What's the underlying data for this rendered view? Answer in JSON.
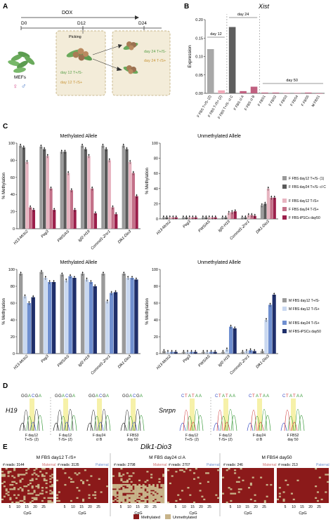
{
  "panel_labels": {
    "a": "A",
    "b": "B",
    "c": "C",
    "d": "D",
    "e": "E"
  },
  "panel_a": {
    "dox": "DOX",
    "d0": "D0",
    "d12": "D12",
    "d24": "D24",
    "picking": "Picking",
    "mefs": "MEFs",
    "day12_a": "day 12 T+/S-",
    "day12_b": "day 12 T-/S+",
    "day24_a": "day 24 T+/S-",
    "day24_b": "day 24 T-/S+",
    "sym_female": "♀",
    "sym_male": "♂"
  },
  "panel_b": {
    "title": "Xist",
    "ylabel": "Expression",
    "group_day12": "day 12",
    "group_day24": "day 24",
    "group_day50": "day 50",
    "yticks": [
      "0.00",
      "0.05",
      "0.10",
      "0.15",
      "0.20"
    ],
    "categories": [
      "F FBS T+/S- (2)",
      "F FBS T-/S+ (2)",
      "F FBS T+/S- cl C",
      "F FBS cl A",
      "F FBS cl B",
      "F FBS1",
      "F FBS2",
      "F FBS3",
      "F FBS4",
      "F FBS5",
      "M FBS1"
    ],
    "values": [
      0.12,
      0.008,
      0.18,
      0.006,
      0.018,
      0.002,
      0.002,
      0.001,
      0.001,
      0.002,
      0.0
    ],
    "colors": [
      "#a8a8a8",
      "#f0a9b8",
      "#5e5e5e",
      "#c06080",
      "#c06080",
      "#c06080",
      "#c06080",
      "#c06080",
      "#c06080",
      "#c06080",
      "#c06080"
    ]
  },
  "panel_c": {
    "ylabel": "% Methylation",
    "yticks": [
      "0",
      "20",
      "40",
      "60",
      "80",
      "100"
    ],
    "categories": [
      "H13-Mcts2",
      "Peg3",
      "PWS/AS",
      "Igf2-H19",
      "Commd1-Zrsr1",
      "Dlk1-Dio3"
    ],
    "plots": [
      {
        "title": "Methylated Allele",
        "series": [
          {
            "name": "F FBS day12 T+/S- (1)",
            "color": "#9a9a9a",
            "values": [
              97,
              96,
              90,
              97,
              97,
              97
            ]
          },
          {
            "name": "F FBS day24 T+/S- cl C",
            "color": "#5a5a5a",
            "values": [
              95,
              93,
              90,
              93,
              93,
              93
            ]
          },
          {
            "name": "F FBS day12 T-/S+",
            "color": "#e7b4c0",
            "values": [
              78,
              85,
              65,
              85,
              80,
              78
            ]
          },
          {
            "name": "F FBS day24 T-/S+",
            "color": "#c37088",
            "values": [
              25,
              47,
              45,
              47,
              25,
              65
            ]
          },
          {
            "name": "F FBS-iPSCs day50",
            "color": "#9b1f4b",
            "values": [
              22,
              22,
              22,
              18,
              17,
              38
            ]
          }
        ]
      },
      {
        "title": "Unmethylated Allele",
        "series": [
          {
            "name": "F FBS day12 T+/S- (1)",
            "color": "#9a9a9a",
            "values": [
              2,
              2,
              2,
              2,
              2,
              18
            ]
          },
          {
            "name": "F FBS day24 T+/S- cl C",
            "color": "#5a5a5a",
            "values": [
              2,
              2,
              2,
              2,
              2,
              20
            ]
          },
          {
            "name": "F FBS day12 T-/S+",
            "color": "#e7b4c0",
            "values": [
              2,
              2,
              2,
              8,
              5,
              40
            ]
          },
          {
            "name": "F FBS day24 T-/S+",
            "color": "#c37088",
            "values": [
              2,
              2,
              2,
              9,
              5,
              28
            ]
          },
          {
            "name": "F FBS-iPSCs day50",
            "color": "#9b1f4b",
            "values": [
              2,
              2,
              2,
              10,
              4,
              28
            ]
          }
        ]
      },
      {
        "title": "Methylated Allele",
        "series": [
          {
            "name": "M FBS day12 T+/S-",
            "color": "#9a9a9a",
            "values": [
              95,
              97,
              94,
              95,
              95,
              95
            ]
          },
          {
            "name": "M FBS day12 T-/S+",
            "color": "#c9d8f0",
            "values": [
              68,
              90,
              87,
              88,
              62,
              90
            ]
          },
          {
            "name": "M FBS day24 T-/S+",
            "color": "#6f8fd0",
            "values": [
              60,
              85,
              92,
              85,
              72,
              90
            ]
          },
          {
            "name": "M FBS-iPSCs day50",
            "color": "#1f2f6b",
            "values": [
              67,
              85,
              90,
              80,
              73,
              88
            ]
          }
        ]
      },
      {
        "title": "Unmethylated Allele",
        "series": [
          {
            "name": "M FBS day12 T+/S-",
            "color": "#9a9a9a",
            "values": [
              3,
              2,
              2,
              2,
              2,
              3
            ]
          },
          {
            "name": "M FBS day12 T-/S+",
            "color": "#c9d8f0",
            "values": [
              2,
              2,
              2,
              5,
              3,
              40
            ]
          },
          {
            "name": "M FBS day24 T-/S+",
            "color": "#6f8fd0",
            "values": [
              2,
              2,
              2,
              32,
              4,
              58
            ]
          },
          {
            "name": "M FBS-iPSCs day50",
            "color": "#1f2f6b",
            "values": [
              2,
              2,
              2,
              30,
              3,
              70
            ]
          }
        ]
      }
    ]
  },
  "panel_d": {
    "gene_left": "H19",
    "gene_right": "Snrpn",
    "seq_left": "GGACGA",
    "seq_right": "CTATAA",
    "left_labels": [
      "F day12 T+/S- (2)",
      "F day12 T-/S+ (2)",
      "F day24 cl B",
      "F FBS3 day 50"
    ],
    "right_labels": [
      "F day12 T+/S- (2)",
      "F day12 T-/S+ (2)",
      "F day24 cl B",
      "F FBS2 day 50"
    ]
  },
  "panel_e": {
    "title": "Dlk1-Dio3",
    "groups": [
      {
        "title": "M FBS day12 T-/S+",
        "reads_mat": "# reads: 3144",
        "reads_pat": "# reads: 3135"
      },
      {
        "title": "M FBS day24 cl A",
        "reads_mat": "# reads: 2798",
        "reads_pat": "# reads: 2707"
      },
      {
        "title": "M FBS4 day50",
        "reads_mat": "# reads: 246",
        "reads_pat": "# reads: 213"
      }
    ],
    "maternal": "Maternal",
    "paternal": "Paternal",
    "xticks": [
      "5",
      "10",
      "15",
      "20",
      "25"
    ],
    "xlabel": "CpG",
    "legend_methylated": "Methylated",
    "legend_unmethylated": "Unmethylated"
  },
  "colors": {
    "methylated": "#8b1a1a",
    "unmethylated": "#c8b48a",
    "panel_bg": "#f3ecd9"
  }
}
